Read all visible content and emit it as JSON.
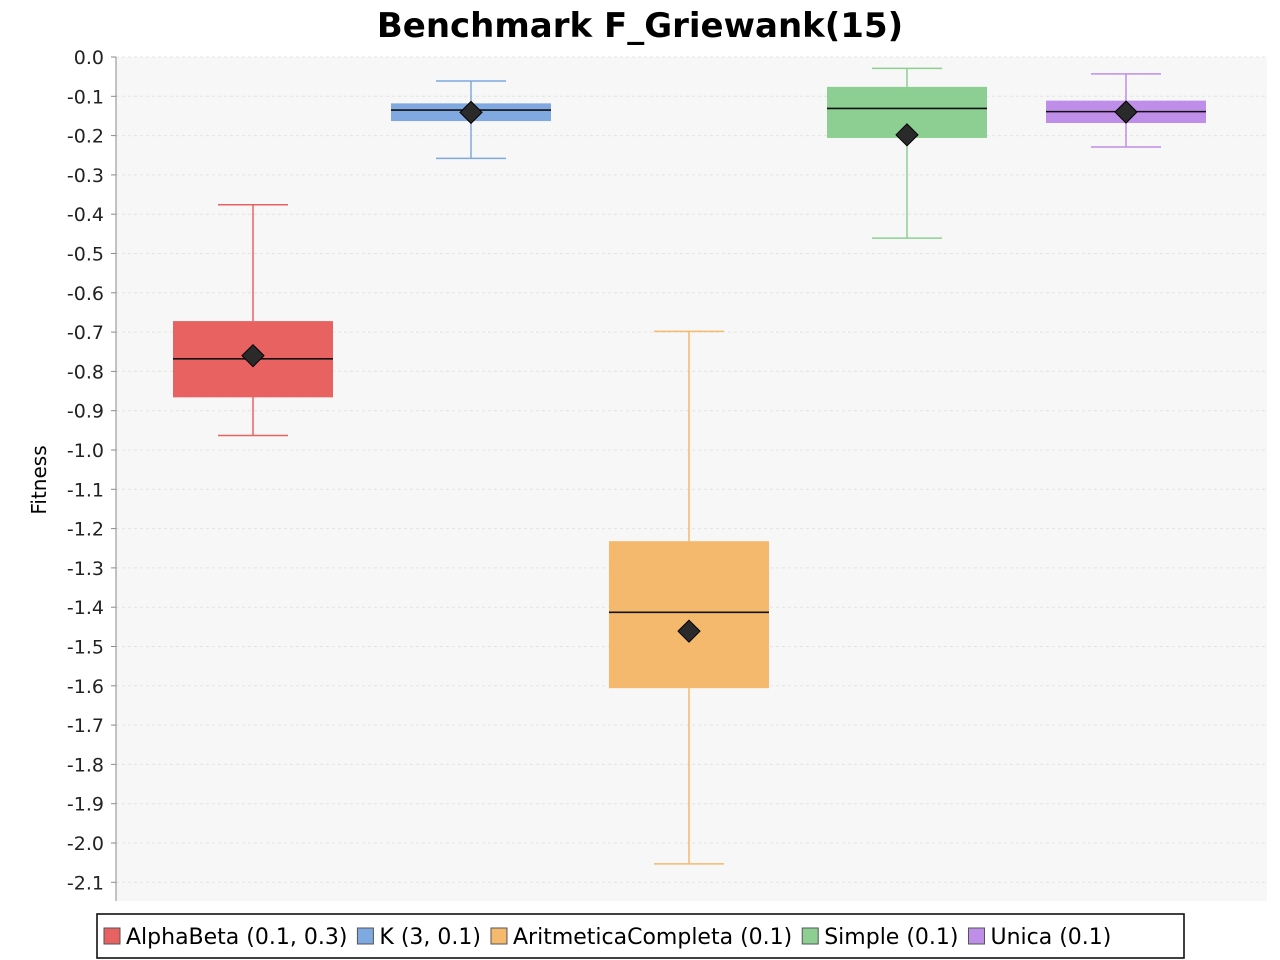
{
  "chart_data": {
    "type": "boxplot",
    "title": "Benchmark F_Griewank(15)",
    "xlabel": "",
    "ylabel": "Fitness",
    "ylim": [
      -2.15,
      0.0
    ],
    "yticks": [
      "0.0",
      "-0.1",
      "-0.2",
      "-0.3",
      "-0.4",
      "-0.5",
      "-0.6",
      "-0.7",
      "-0.8",
      "-0.9",
      "-1.0",
      "-1.1",
      "-1.2",
      "-1.3",
      "-1.4",
      "-1.5",
      "-1.6",
      "-1.7",
      "-1.8",
      "-1.9",
      "-2.0",
      "-2.1"
    ],
    "grid": true,
    "legend_position": "bottom",
    "series": [
      {
        "name": "AlphaBeta (0.1, 0.3)",
        "color": "#e86262",
        "whisker_min": -0.963,
        "q1": -0.866,
        "median": -0.768,
        "q3": -0.672,
        "whisker_max": -0.376,
        "mean": -0.76
      },
      {
        "name": "K (3, 0.1)",
        "color": "#7fa9e0",
        "whisker_min": -0.258,
        "q1": -0.163,
        "median": -0.135,
        "q3": -0.118,
        "whisker_max": -0.061,
        "mean": -0.141
      },
      {
        "name": "AritmeticaCompleta (0.1)",
        "color": "#f5b96e",
        "whisker_min": -2.053,
        "q1": -1.606,
        "median": -1.413,
        "q3": -1.232,
        "whisker_max": -0.698,
        "mean": -1.461
      },
      {
        "name": "Simple (0.1)",
        "color": "#8dcf92",
        "whisker_min": -0.461,
        "q1": -0.206,
        "median": -0.131,
        "q3": -0.076,
        "whisker_max": -0.029,
        "mean": -0.198
      },
      {
        "name": "Unica (0.1)",
        "color": "#bf8ee8",
        "whisker_min": -0.229,
        "q1": -0.168,
        "median": -0.139,
        "q3": -0.111,
        "whisker_max": -0.043,
        "mean": -0.14
      }
    ]
  }
}
